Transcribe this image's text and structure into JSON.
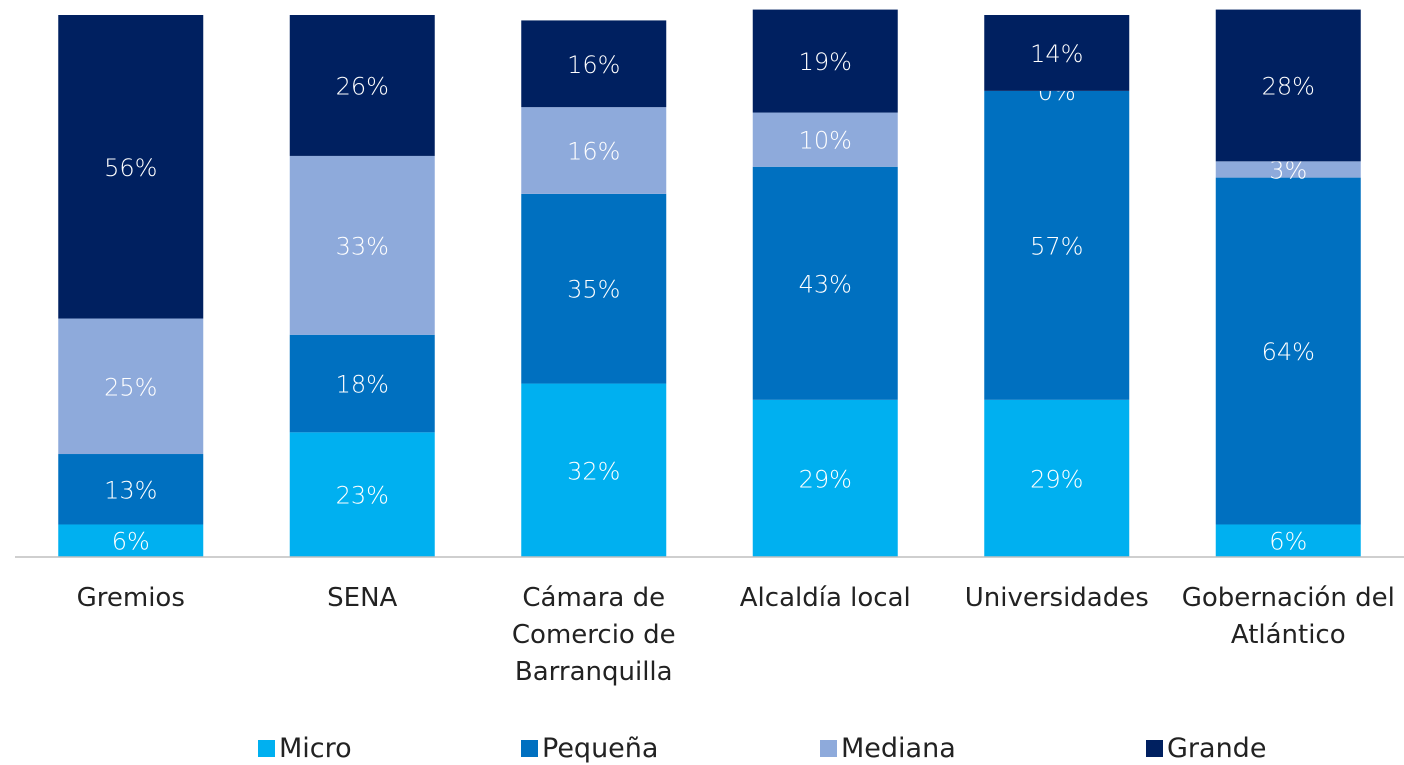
{
  "chart_data": {
    "type": "stacked_bar",
    "categories": [
      "Gremios",
      "SENA",
      "Cámara de Comercio de Barranquilla",
      "Alcaldía local",
      "Universidades",
      "Gobernación del Atlántico"
    ],
    "series": [
      {
        "name": "Micro",
        "color": "#00b0f0",
        "values": [
          6,
          23,
          32,
          29,
          29,
          6
        ],
        "value_labels": [
          "6%",
          "23%",
          "32%",
          "29%",
          "29%",
          "6%"
        ]
      },
      {
        "name": "Pequeña",
        "color": "#0070c0",
        "values": [
          13,
          18,
          35,
          43,
          57,
          64
        ],
        "value_labels": [
          "13%",
          "18%",
          "35%",
          "43%",
          "57%",
          "64%"
        ]
      },
      {
        "name": "Mediana",
        "color": "#8eaadb",
        "values": [
          25,
          33,
          16,
          10,
          0,
          3
        ],
        "value_labels": [
          "25%",
          "33%",
          "16%",
          "10%",
          "0%",
          "3%"
        ]
      },
      {
        "name": "Grande",
        "color": "#002060",
        "values": [
          56,
          26,
          16,
          19,
          14,
          28
        ],
        "value_labels": [
          "56%",
          "26%",
          "16%",
          "19%",
          "14%",
          "28%"
        ]
      }
    ],
    "ylim": [
      0,
      100
    ],
    "legend": "bottom"
  }
}
